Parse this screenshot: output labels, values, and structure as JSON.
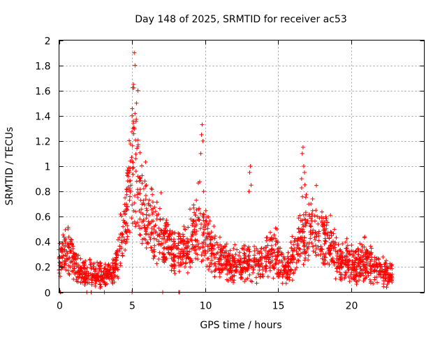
{
  "chart_data": {
    "type": "scatter",
    "title": "Day 148 of 2025, SRMTID for receiver ac53",
    "xlabel": "GPS time / hours",
    "ylabel": "SRMTID / TECUs",
    "xlim": [
      0,
      25
    ],
    "ylim": [
      0,
      2
    ],
    "x_ticks": [
      0,
      5,
      10,
      15,
      20
    ],
    "x_tick_labels": [
      "0",
      "5",
      "10",
      "15",
      "20"
    ],
    "y_ticks": [
      0,
      0.2,
      0.4,
      0.6,
      0.8,
      1,
      1.2,
      1.4,
      1.6,
      1.8,
      2
    ],
    "y_tick_labels": [
      "0",
      "0.2",
      "0.4",
      "0.6",
      "0.8",
      "1",
      "1.2",
      "1.4",
      "1.6",
      "1.8",
      "2"
    ],
    "grid": true,
    "marker": "+",
    "marker_color": "#ff0000",
    "series_name": "SRMTID",
    "profile_hours": [
      0,
      0.3,
      0.5,
      1.0,
      1.5,
      2.0,
      2.5,
      3.0,
      3.5,
      3.8,
      4.2,
      4.6,
      5.0,
      5.3,
      5.6,
      6.0,
      6.4,
      6.8,
      7.2,
      7.6,
      8.0,
      8.4,
      8.8,
      9.2,
      9.6,
      10.0,
      10.4,
      10.8,
      11.2,
      11.6,
      12.0,
      12.4,
      12.8,
      13.2,
      13.6,
      14.0,
      14.4,
      14.8,
      15.2,
      15.6,
      16.0,
      16.4,
      16.8,
      17.2,
      17.6,
      18.0,
      18.4,
      18.8,
      19.2,
      19.6,
      20.0,
      20.4,
      20.8,
      21.2,
      21.6,
      22.0,
      22.4,
      22.8
    ],
    "profile_median": [
      0.2,
      0.3,
      0.33,
      0.25,
      0.15,
      0.14,
      0.13,
      0.12,
      0.15,
      0.2,
      0.35,
      0.6,
      0.95,
      0.95,
      0.75,
      0.6,
      0.5,
      0.45,
      0.38,
      0.35,
      0.3,
      0.3,
      0.35,
      0.45,
      0.5,
      0.45,
      0.35,
      0.28,
      0.25,
      0.22,
      0.2,
      0.2,
      0.22,
      0.25,
      0.22,
      0.25,
      0.3,
      0.3,
      0.2,
      0.18,
      0.25,
      0.38,
      0.5,
      0.5,
      0.45,
      0.42,
      0.38,
      0.3,
      0.25,
      0.25,
      0.22,
      0.22,
      0.25,
      0.22,
      0.2,
      0.18,
      0.15,
      0.13
    ],
    "spikes": [
      {
        "x": [
          5.0,
          5.1,
          5.15,
          5.2,
          5.3,
          5.4
        ],
        "y": [
          1.4,
          1.65,
          1.9,
          1.8,
          1.5,
          1.6
        ]
      },
      {
        "x": [
          9.7,
          9.75,
          9.8,
          9.85,
          9.9
        ],
        "y": [
          1.1,
          1.25,
          1.33,
          1.2,
          0.8
        ]
      },
      {
        "x": [
          13.0,
          13.05,
          13.1,
          13.15
        ],
        "y": [
          0.8,
          0.95,
          1.0,
          0.85
        ]
      },
      {
        "x": [
          16.6,
          16.65,
          16.7,
          16.75,
          16.8
        ],
        "y": [
          0.9,
          1.1,
          1.15,
          1.0,
          0.95
        ]
      }
    ],
    "point_count": 2000
  }
}
